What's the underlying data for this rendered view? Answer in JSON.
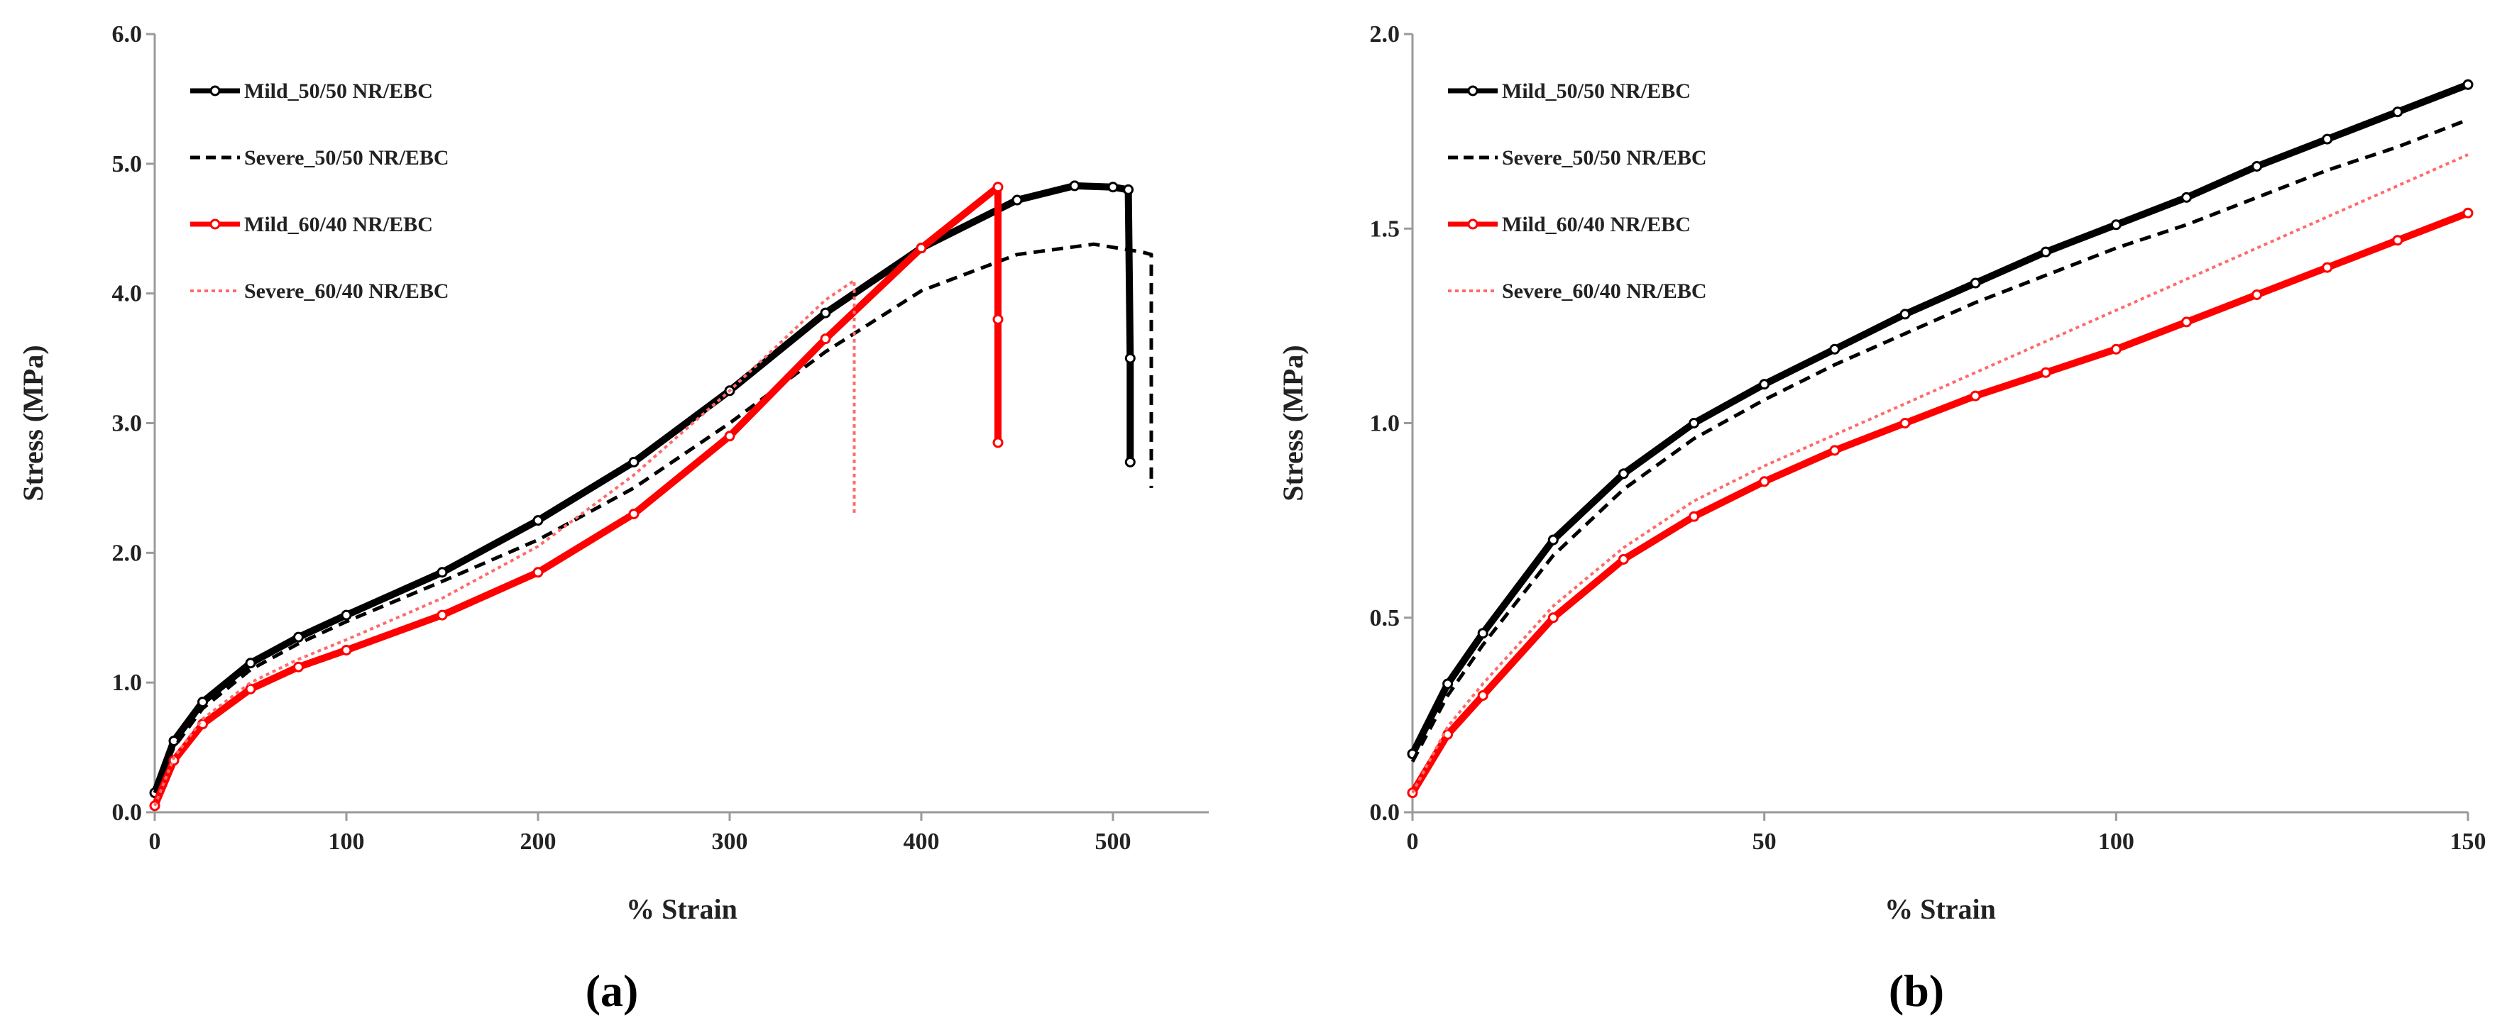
{
  "colors": {
    "black": "#000000",
    "red": "#ff0000",
    "light_red": "#ff6a6a",
    "axis": "#9a9a9a"
  },
  "chart_data": [
    {
      "panel_label": "(a)",
      "type": "line",
      "xlabel": "% Strain",
      "ylabel": "Stress (MPa)",
      "xlim": [
        0,
        550
      ],
      "ylim": [
        0,
        6
      ],
      "xticks": [
        "0",
        "100",
        "200",
        "300",
        "400",
        "500"
      ],
      "yticks": [
        "0.0",
        "1.0",
        "2.0",
        "3.0",
        "4.0",
        "5.0",
        "6.0"
      ],
      "legend_position": "top-left",
      "grid": false,
      "series": [
        {
          "name": "Mild_50/50 NR/EBC",
          "style": "solid-marker",
          "color": "#000000",
          "x": [
            0,
            10,
            25,
            50,
            75,
            100,
            150,
            200,
            250,
            300,
            350,
            400,
            450,
            480,
            500,
            508,
            509,
            509
          ],
          "y": [
            0.15,
            0.55,
            0.85,
            1.15,
            1.35,
            1.52,
            1.85,
            2.25,
            2.7,
            3.25,
            3.85,
            4.35,
            4.72,
            4.83,
            4.82,
            4.8,
            3.5,
            2.7
          ]
        },
        {
          "name": "Severe_50/50 NR/EBC",
          "style": "dashed",
          "color": "#000000",
          "x": [
            0,
            10,
            25,
            50,
            75,
            100,
            150,
            200,
            250,
            300,
            350,
            400,
            450,
            490,
            515,
            520,
            520
          ],
          "y": [
            0.15,
            0.5,
            0.8,
            1.1,
            1.3,
            1.47,
            1.78,
            2.1,
            2.5,
            3.0,
            3.55,
            4.02,
            4.3,
            4.38,
            4.32,
            4.3,
            2.5
          ]
        },
        {
          "name": "Mild_60/40 NR/EBC",
          "style": "solid-marker",
          "color": "#ff0000",
          "x": [
            0,
            10,
            25,
            50,
            75,
            100,
            150,
            200,
            250,
            300,
            350,
            400,
            440,
            440,
            440
          ],
          "y": [
            0.05,
            0.4,
            0.68,
            0.95,
            1.12,
            1.25,
            1.52,
            1.85,
            2.3,
            2.9,
            3.65,
            4.35,
            4.82,
            3.8,
            2.85
          ]
        },
        {
          "name": "Severe_60/40 NR/EBC",
          "style": "dotted",
          "color": "#ff6a6a",
          "x": [
            0,
            10,
            25,
            50,
            75,
            100,
            150,
            200,
            250,
            300,
            350,
            365,
            365
          ],
          "y": [
            0.05,
            0.42,
            0.72,
            1.0,
            1.18,
            1.33,
            1.65,
            2.05,
            2.6,
            3.25,
            3.95,
            4.1,
            2.3
          ]
        }
      ]
    },
    {
      "panel_label": "(b)",
      "type": "line",
      "xlabel": "% Strain",
      "ylabel": "Stress (MPa)",
      "xlim": [
        0,
        150
      ],
      "ylim": [
        0,
        2
      ],
      "xticks": [
        "0",
        "50",
        "100",
        "150"
      ],
      "yticks": [
        "0.0",
        "0.5",
        "1.0",
        "1.5",
        "2.0"
      ],
      "legend_position": "top-left",
      "grid": false,
      "series": [
        {
          "name": "Mild_50/50 NR/EBC",
          "style": "solid-marker",
          "color": "#000000",
          "x": [
            0,
            5,
            10,
            20,
            30,
            40,
            50,
            60,
            70,
            80,
            90,
            100,
            110,
            120,
            130,
            140,
            150
          ],
          "y": [
            0.15,
            0.33,
            0.46,
            0.7,
            0.87,
            1.0,
            1.1,
            1.19,
            1.28,
            1.36,
            1.44,
            1.51,
            1.58,
            1.66,
            1.73,
            1.8,
            1.87
          ]
        },
        {
          "name": "Severe_50/50 NR/EBC",
          "style": "dashed",
          "color": "#000000",
          "x": [
            0,
            5,
            10,
            20,
            30,
            40,
            50,
            60,
            70,
            80,
            90,
            100,
            110,
            120,
            130,
            140,
            150
          ],
          "y": [
            0.13,
            0.3,
            0.43,
            0.66,
            0.83,
            0.96,
            1.06,
            1.15,
            1.23,
            1.31,
            1.38,
            1.45,
            1.51,
            1.58,
            1.65,
            1.71,
            1.78
          ]
        },
        {
          "name": "Mild_60/40 NR/EBC",
          "style": "solid-marker",
          "color": "#ff0000",
          "x": [
            0,
            5,
            10,
            20,
            30,
            40,
            50,
            60,
            70,
            80,
            90,
            100,
            110,
            120,
            130,
            140,
            150
          ],
          "y": [
            0.05,
            0.2,
            0.3,
            0.5,
            0.65,
            0.76,
            0.85,
            0.93,
            1.0,
            1.07,
            1.13,
            1.19,
            1.26,
            1.33,
            1.4,
            1.47,
            1.54
          ]
        },
        {
          "name": "Severe_60/40 NR/EBC",
          "style": "dotted",
          "color": "#ff6a6a",
          "x": [
            0,
            5,
            10,
            20,
            30,
            40,
            50,
            60,
            70,
            80,
            90,
            100,
            110,
            120,
            130,
            140,
            150
          ],
          "y": [
            0.05,
            0.22,
            0.33,
            0.53,
            0.68,
            0.8,
            0.89,
            0.97,
            1.05,
            1.13,
            1.21,
            1.29,
            1.37,
            1.45,
            1.53,
            1.61,
            1.69
          ]
        }
      ]
    }
  ]
}
